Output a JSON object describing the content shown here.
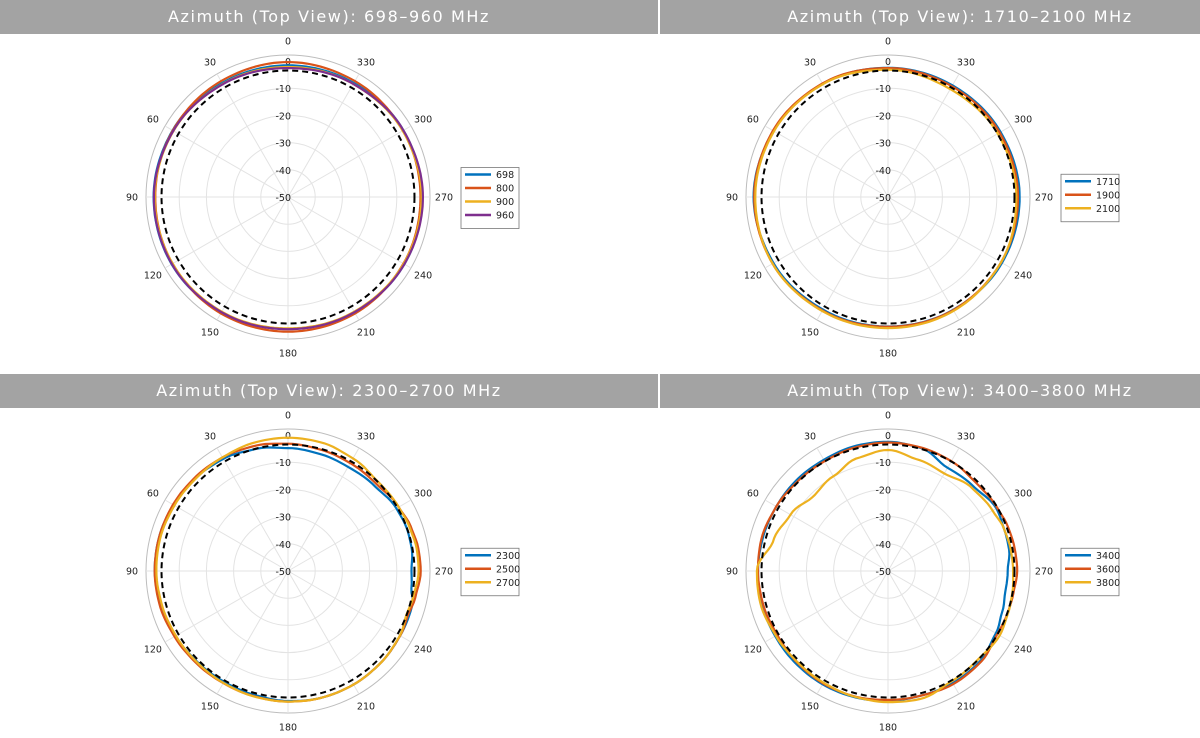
{
  "panels": [
    {
      "title": "Azimuth (Top View): 698–960 MHz",
      "chart_data": {
        "type": "polar",
        "title": "Azimuth (Top View): 698–960 MHz",
        "angle_ticks": [
          "0",
          "30",
          "60",
          "90",
          "120",
          "150",
          "180",
          "210",
          "240",
          "270",
          "300",
          "330"
        ],
        "radial_ticks": [
          "0",
          "-10",
          "-20",
          "-30",
          "-40",
          "-50"
        ],
        "rlim": [
          -50,
          0
        ],
        "direction": "counterclockwise",
        "zero_location": "top",
        "legend_position": "right",
        "reference_line": {
          "style": "dashed",
          "color": "#000000",
          "value_db": -3.5
        },
        "series": [
          {
            "name": "698",
            "color": "#0072bd",
            "angles": [
              0,
              30,
              60,
              90,
              120,
              150,
              180,
              210,
              240,
              270,
              300,
              330
            ],
            "values": [
              -1.6,
              -1.6,
              -1.0,
              -0.6,
              -0.6,
              -1.1,
              -1.6,
              -1.1,
              -0.6,
              -0.6,
              -1.0,
              -1.6
            ]
          },
          {
            "name": "800",
            "color": "#d95319",
            "angles": [
              0,
              30,
              60,
              90,
              120,
              150,
              180,
              210,
              240,
              270,
              300,
              330
            ],
            "values": [
              -0.4,
              -0.8,
              -1.1,
              -1.2,
              -1.0,
              -0.6,
              -0.5,
              -0.6,
              -1.0,
              -1.3,
              -1.2,
              -0.8
            ]
          },
          {
            "name": "900",
            "color": "#edb120",
            "angles": [
              0,
              30,
              60,
              90,
              120,
              150,
              180,
              210,
              240,
              270,
              300,
              330
            ],
            "values": [
              -2.2,
              -2.0,
              -1.4,
              -1.0,
              -1.0,
              -1.3,
              -1.7,
              -1.3,
              -0.9,
              -0.9,
              -1.3,
              -2.0
            ]
          },
          {
            "name": "960",
            "color": "#7e2f8e",
            "angles": [
              0,
              30,
              60,
              90,
              120,
              150,
              180,
              210,
              240,
              270,
              300,
              330
            ],
            "values": [
              -2.6,
              -2.1,
              -1.3,
              -0.7,
              -0.7,
              -1.1,
              -1.4,
              -1.1,
              -0.6,
              -0.4,
              -1.0,
              -2.0
            ]
          }
        ]
      }
    },
    {
      "title": "Azimuth (Top View): 1710–2100 MHz",
      "chart_data": {
        "type": "polar",
        "title": "Azimuth (Top View): 1710–2100 MHz",
        "angle_ticks": [
          "0",
          "30",
          "60",
          "90",
          "120",
          "150",
          "180",
          "210",
          "240",
          "270",
          "300",
          "330"
        ],
        "radial_ticks": [
          "0",
          "-10",
          "-20",
          "-30",
          "-40",
          "-50"
        ],
        "rlim": [
          -50,
          0
        ],
        "direction": "counterclockwise",
        "zero_location": "top",
        "legend_position": "right",
        "reference_line": {
          "style": "dashed",
          "color": "#000000",
          "value_db": -3.5
        },
        "series": [
          {
            "name": "1710",
            "color": "#0072bd",
            "angles": [
              0,
              30,
              60,
              90,
              120,
              150,
              180,
              210,
              240,
              270,
              300,
              330
            ],
            "values": [
              -2.5,
              -2.0,
              -1.3,
              -0.6,
              -1.4,
              -2.2,
              -2.4,
              -2.1,
              -1.6,
              -1.6,
              -2.2,
              -2.6
            ]
          },
          {
            "name": "1900",
            "color": "#d95319",
            "angles": [
              0,
              30,
              60,
              90,
              120,
              150,
              180,
              210,
              240,
              270,
              300,
              330
            ],
            "values": [
              -2.6,
              -1.8,
              -1.2,
              -0.8,
              -1.0,
              -1.8,
              -2.3,
              -2.0,
              -2.0,
              -2.2,
              -2.6,
              -3.0
            ]
          },
          {
            "name": "2100",
            "color": "#edb120",
            "angles": [
              0,
              30,
              60,
              90,
              120,
              150,
              180,
              210,
              240,
              270,
              300,
              330
            ],
            "values": [
              -3.2,
              -2.1,
              -1.6,
              -1.2,
              -1.0,
              -1.6,
              -1.8,
              -1.7,
              -2.0,
              -2.8,
              -3.4,
              -4.2
            ]
          }
        ]
      }
    },
    {
      "title": "Azimuth (Top View): 2300–2700 MHz",
      "chart_data": {
        "type": "polar",
        "title": "Azimuth (Top View): 2300–2700 MHz",
        "angle_ticks": [
          "0",
          "30",
          "60",
          "90",
          "120",
          "150",
          "180",
          "210",
          "240",
          "270",
          "300",
          "330"
        ],
        "radial_ticks": [
          "0",
          "-10",
          "-20",
          "-30",
          "-40",
          "-50"
        ],
        "rlim": [
          -50,
          0
        ],
        "direction": "counterclockwise",
        "zero_location": "top",
        "legend_position": "right",
        "reference_line": {
          "style": "dashed",
          "color": "#000000",
          "value_db": -3.5
        },
        "series": [
          {
            "name": "2300",
            "color": "#0072bd",
            "angles": [
              0,
              15,
              30,
              45,
              60,
              75,
              90,
              105,
              120,
              135,
              150,
              165,
              180,
              195,
              210,
              225,
              240,
              255,
              262,
              270,
              280,
              290,
              300,
              315,
              330,
              345
            ],
            "values": [
              -4.8,
              -3.6,
              -2.4,
              -1.8,
              -1.3,
              -1.0,
              -1.0,
              -1.5,
              -2.2,
              -2.8,
              -3.0,
              -2.8,
              -2.2,
              -1.8,
              -1.8,
              -2.0,
              -2.4,
              -2.6,
              -4.2,
              -4.6,
              -3.8,
              -3.6,
              -4.0,
              -5.4,
              -5.8,
              -5.4
            ]
          },
          {
            "name": "2500",
            "color": "#d95319",
            "angles": [
              0,
              15,
              30,
              45,
              60,
              75,
              90,
              105,
              120,
              135,
              150,
              165,
              180,
              195,
              210,
              225,
              240,
              250,
              258,
              270,
              280,
              290,
              300,
              315,
              330,
              345
            ],
            "values": [
              -3.2,
              -2.4,
              -1.8,
              -1.5,
              -1.2,
              -1.0,
              -1.0,
              -1.2,
              -1.8,
              -2.2,
              -2.4,
              -2.3,
              -2.0,
              -1.8,
              -1.8,
              -2.0,
              -2.4,
              -3.0,
              -2.2,
              -1.2,
              -1.4,
              -2.0,
              -3.0,
              -4.4,
              -4.2,
              -3.8
            ]
          },
          {
            "name": "2700",
            "color": "#edb120",
            "angles": [
              0,
              15,
              30,
              45,
              60,
              75,
              90,
              105,
              120,
              135,
              150,
              165,
              180,
              195,
              210,
              225,
              240,
              250,
              258,
              270,
              280,
              290,
              300,
              315,
              330,
              345
            ],
            "values": [
              -1.0,
              -1.2,
              -1.8,
              -2.0,
              -1.8,
              -1.5,
              -1.6,
              -2.0,
              -2.4,
              -2.6,
              -2.5,
              -2.2,
              -2.0,
              -1.8,
              -1.8,
              -2.0,
              -2.5,
              -3.6,
              -3.0,
              -2.0,
              -2.0,
              -2.5,
              -3.0,
              -3.4,
              -2.2,
              -1.2
            ]
          }
        ]
      }
    },
    {
      "title": "Azimuth (Top View): 3400–3800 MHz",
      "chart_data": {
        "type": "polar",
        "title": "Azimuth (Top View): 3400–3800 MHz",
        "angle_ticks": [
          "0",
          "30",
          "60",
          "90",
          "120",
          "150",
          "180",
          "210",
          "240",
          "270",
          "300",
          "330"
        ],
        "radial_ticks": [
          "0",
          "-10",
          "-20",
          "-30",
          "-40",
          "-50"
        ],
        "rlim": [
          -50,
          0
        ],
        "direction": "counterclockwise",
        "zero_location": "top",
        "legend_position": "right",
        "reference_line": {
          "style": "dashed",
          "color": "#000000",
          "value_db": -3.5
        },
        "series": [
          {
            "name": "3400",
            "color": "#0072bd",
            "angles": [
              0,
              15,
              30,
              45,
              60,
              75,
              90,
              105,
              120,
              135,
              150,
              165,
              180,
              195,
              210,
              225,
              240,
              250,
              260,
              270,
              280,
              290,
              300,
              315,
              330,
              345
            ],
            "values": [
              -2.5,
              -2.5,
              -2.8,
              -2.6,
              -2.6,
              -2.4,
              -2.2,
              -2.0,
              -2.1,
              -2.0,
              -1.9,
              -2.0,
              -2.3,
              -2.6,
              -2.4,
              -2.6,
              -4.2,
              -5.4,
              -6.2,
              -6.0,
              -4.8,
              -4.6,
              -4.0,
              -5.8,
              -6.2,
              -3.2
            ]
          },
          {
            "name": "3600",
            "color": "#d95319",
            "angles": [
              0,
              15,
              30,
              45,
              60,
              75,
              90,
              105,
              120,
              135,
              150,
              165,
              180,
              195,
              210,
              225,
              240,
              250,
              260,
              270,
              280,
              290,
              300,
              315,
              330,
              345
            ],
            "values": [
              -2.8,
              -3.0,
              -3.4,
              -3.2,
              -2.6,
              -2.0,
              -2.2,
              -2.5,
              -3.0,
              -2.6,
              -2.3,
              -2.3,
              -2.6,
              -2.6,
              -2.0,
              -2.2,
              -3.6,
              -3.4,
              -3.2,
              -2.5,
              -2.7,
              -3.0,
              -3.6,
              -4.2,
              -3.4,
              -3.0
            ]
          },
          {
            "name": "3800",
            "color": "#edb120",
            "angles": [
              0,
              15,
              30,
              45,
              60,
              75,
              90,
              105,
              120,
              135,
              150,
              165,
              180,
              195,
              210,
              225,
              240,
              250,
              260,
              270,
              280,
              290,
              300,
              315,
              330,
              345
            ],
            "values": [
              -5.5,
              -7.0,
              -9.8,
              -11.2,
              -8.6,
              -6.4,
              -1.8,
              -1.6,
              -2.4,
              -2.8,
              -2.6,
              -2.2,
              -1.8,
              -1.5,
              -3.2,
              -3.6,
              -2.6,
              -3.2,
              -3.6,
              -4.0,
              -4.2,
              -4.6,
              -5.6,
              -6.6,
              -8.6,
              -7.6
            ]
          }
        ]
      }
    }
  ]
}
